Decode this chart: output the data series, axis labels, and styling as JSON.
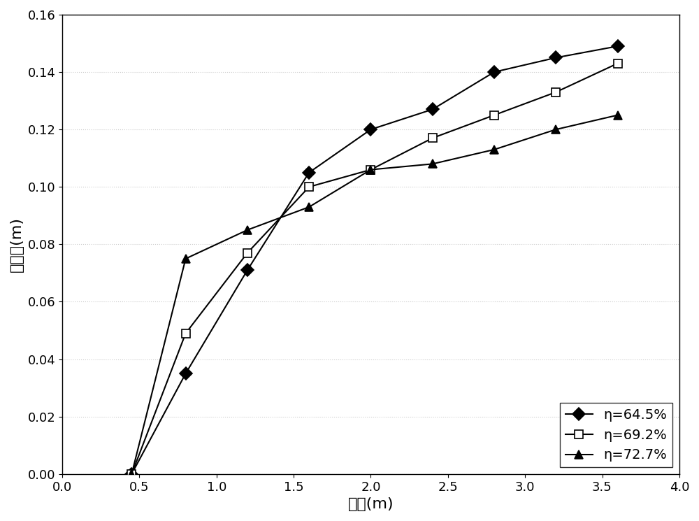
{
  "series": [
    {
      "label": "η=64.5%",
      "x": [
        0.45,
        0.8,
        1.2,
        1.6,
        2.0,
        2.4,
        2.8,
        3.2,
        3.6
      ],
      "y": [
        0.0,
        0.035,
        0.071,
        0.105,
        0.12,
        0.127,
        0.14,
        0.145,
        0.149
      ],
      "marker": "D",
      "marker_fill": "black",
      "line_color": "black"
    },
    {
      "label": "η=69.2%",
      "x": [
        0.45,
        0.8,
        1.2,
        1.6,
        2.0,
        2.4,
        2.8,
        3.2,
        3.6
      ],
      "y": [
        0.0,
        0.049,
        0.077,
        0.1,
        0.106,
        0.117,
        0.125,
        0.133,
        0.143
      ],
      "marker": "s",
      "marker_fill": "white",
      "line_color": "black"
    },
    {
      "label": "η=72.7%",
      "x": [
        0.45,
        0.8,
        1.2,
        1.6,
        2.0,
        2.4,
        2.8,
        3.2,
        3.6
      ],
      "y": [
        0.0,
        0.075,
        0.085,
        0.093,
        0.106,
        0.108,
        0.113,
        0.12,
        0.125
      ],
      "marker": "^",
      "marker_fill": "black",
      "line_color": "black"
    }
  ],
  "xlabel_zh": "堆高(m)",
  "ylabel_zh": "压缩量(m)",
  "xlim": [
    0.0,
    4.0
  ],
  "ylim": [
    0.0,
    0.16
  ],
  "xticks": [
    0.0,
    0.5,
    1.0,
    1.5,
    2.0,
    2.5,
    3.0,
    3.5,
    4.0
  ],
  "yticks": [
    0.0,
    0.02,
    0.04,
    0.06,
    0.08,
    0.1,
    0.12,
    0.14,
    0.16
  ],
  "legend_loc": "lower right",
  "font_size_label": 16,
  "font_size_tick": 13,
  "font_size_legend": 14,
  "marker_size": 9,
  "line_width": 1.5,
  "background_color": "#ffffff",
  "grid_color": "#cccccc",
  "grid_style": ":"
}
